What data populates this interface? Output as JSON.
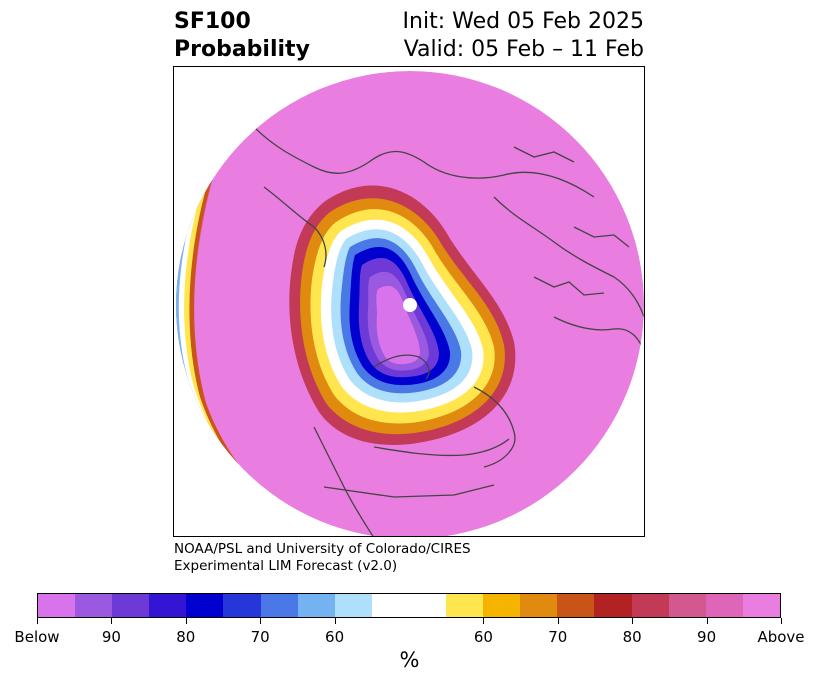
{
  "title": {
    "left_line1": "SF100",
    "left_line2": "Probability",
    "right_line1": "Init: Wed 05 Feb 2025",
    "right_line2": "Valid: 05 Feb – 11 Feb"
  },
  "credit": {
    "line1": "NOAA/PSL and University of Colorado/CIRES",
    "line2": "Experimental LIM Forecast (v2.0)"
  },
  "colorbar": {
    "unit": "%",
    "colors": [
      "#d973ec",
      "#9b59e0",
      "#6d3ad8",
      "#3415d4",
      "#0000cf",
      "#2637d9",
      "#4a78e6",
      "#74b2f2",
      "#aee0fb",
      "#ffffff",
      "#ffffff",
      "#ffe54e",
      "#f4b400",
      "#e08a10",
      "#c85418",
      "#b32222",
      "#c23a56",
      "#d25890",
      "#de66b8",
      "#e97de0"
    ],
    "tick_labels": [
      "Below",
      "90",
      "80",
      "70",
      "60",
      "60",
      "70",
      "80",
      "90",
      "Above"
    ]
  },
  "map": {
    "projection": "north polar stereographic",
    "background_color": "#e97de0",
    "polar_hole_color": "#ffffff"
  }
}
